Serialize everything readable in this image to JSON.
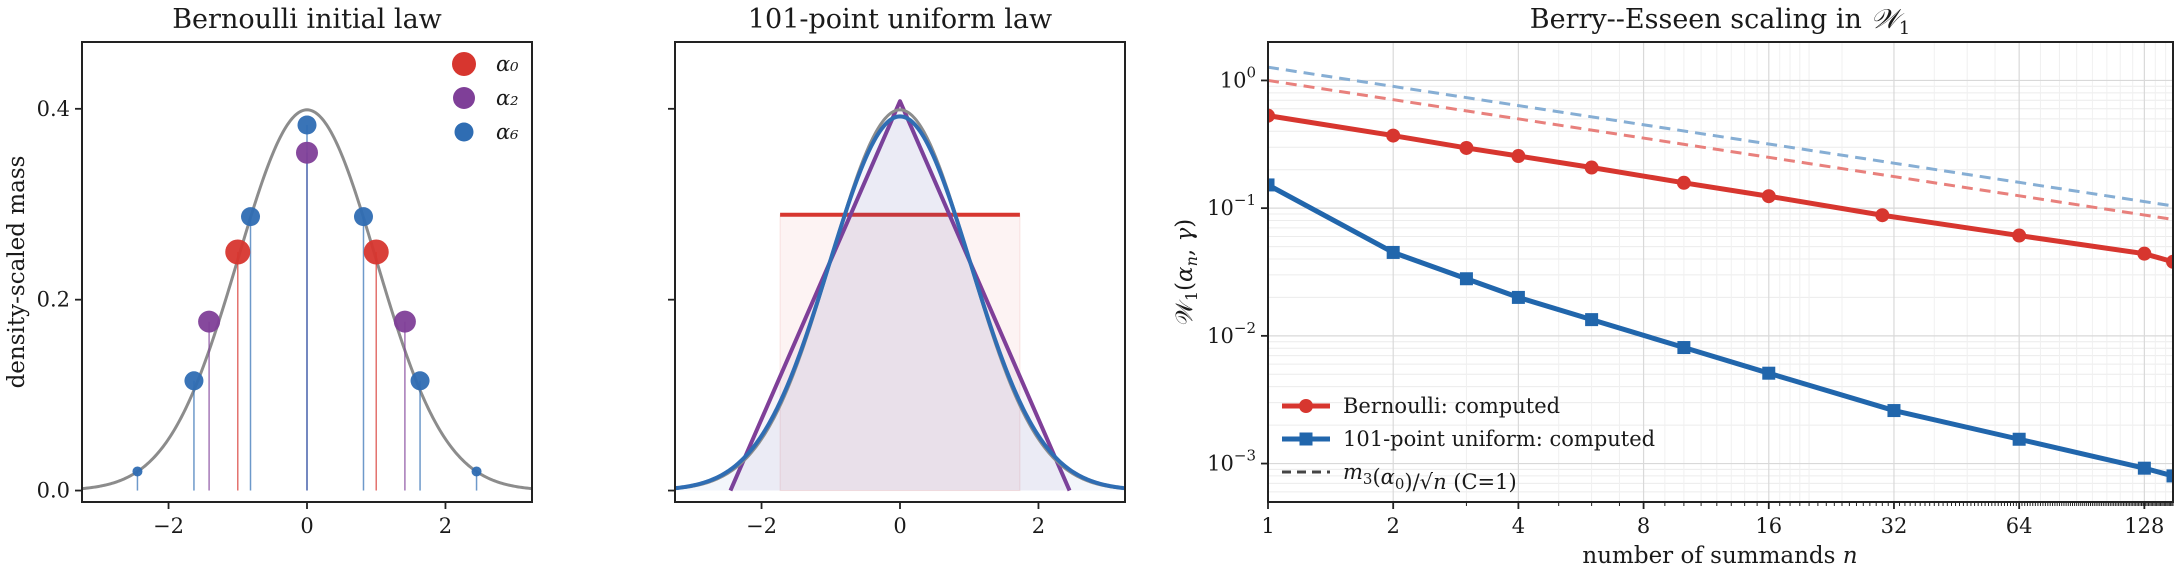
{
  "chart_data": [
    {
      "type": "scatter",
      "title": "Bernoulli initial law",
      "ylabel": "density-scaled mass",
      "xlabel": "",
      "xlim": [
        -3.25,
        3.25
      ],
      "ylim": [
        -0.012,
        0.47
      ],
      "xticks": [
        "−2",
        "0",
        "2"
      ],
      "yticks": [
        "0.0",
        "0.2",
        "0.4"
      ],
      "grid": false,
      "legend": "top-right",
      "reference_curve": "standard normal density",
      "series": [
        {
          "name": "α₀",
          "color": "#d7362f",
          "x": [
            -1,
            1
          ],
          "y": [
            0.25,
            0.25
          ]
        },
        {
          "name": "α₂",
          "color": "#7f3f98",
          "x": [
            -1.414,
            0,
            1.414
          ],
          "y": [
            0.177,
            0.354,
            0.177
          ]
        },
        {
          "name": "α₆",
          "color": "#2f6db3",
          "x": [
            -2.449,
            -1.633,
            -0.816,
            0,
            0.816,
            1.633,
            2.449
          ],
          "y": [
            0.02,
            0.115,
            0.287,
            0.383,
            0.287,
            0.115,
            0.02
          ]
        }
      ]
    },
    {
      "type": "line",
      "title": "101-point uniform law",
      "xlim": [
        -3.25,
        3.25
      ],
      "ylim": [
        -0.012,
        0.47
      ],
      "xticks": [
        "−2",
        "0",
        "2"
      ],
      "grid": false,
      "series": [
        {
          "color": "#d7362f",
          "shape": "uniform",
          "half_width": 1.732,
          "height": 0.289
        },
        {
          "color": "#7f3f98",
          "shape": "triangular",
          "half_width": 2.449,
          "height": 0.408
        },
        {
          "color": "#2f6db3",
          "shape": "smooth",
          "height": 0.392
        },
        {
          "color": "#8c8c8c",
          "shape": "normal",
          "height": 0.399
        }
      ]
    },
    {
      "type": "line",
      "title": "Berry--Esseen scaling in 𝒲₁",
      "xlabel_text": "number of summands ",
      "xlabel_var": "n",
      "ylabel": "𝒲₁(αₙ, γ)",
      "xscale": "log2",
      "yscale": "log10",
      "xlim": [
        1,
        150
      ],
      "ylim": [
        0.0005,
        2.0
      ],
      "xticks": [
        1,
        2,
        4,
        8,
        16,
        32,
        64,
        128
      ],
      "xtick_labels": [
        "1",
        "2",
        "4",
        "8",
        "16",
        "32",
        "64",
        "128"
      ],
      "yticks": [
        0.001,
        0.01,
        0.1,
        1
      ],
      "ytick_labels": [
        [
          "10",
          "−3"
        ],
        [
          "10",
          "−2"
        ],
        [
          "10",
          "−1"
        ],
        [
          "10",
          "0"
        ]
      ],
      "grid": true,
      "legend": "bottom-left",
      "series": [
        {
          "name": "Bernoulli: computed",
          "color": "#d7362f",
          "marker": "circle",
          "x": [
            1,
            2,
            3,
            4,
            6,
            10,
            16,
            30,
            64,
            128,
            150
          ],
          "y": [
            0.53,
            0.37,
            0.296,
            0.256,
            0.208,
            0.158,
            0.124,
            0.088,
            0.061,
            0.044,
            0.038
          ]
        },
        {
          "name": "101-point uniform: computed",
          "color": "#2166ac",
          "marker": "square",
          "x": [
            1,
            2,
            3,
            4,
            6,
            10,
            16,
            32,
            64,
            128,
            150
          ],
          "y": [
            0.152,
            0.045,
            0.028,
            0.02,
            0.0134,
            0.0081,
            0.0051,
            0.0026,
            0.00155,
            0.00092,
            0.0008
          ]
        },
        {
          "name": "C=1",
          "color": "#e8807c",
          "dashed": true,
          "x": [
            1,
            150
          ],
          "y": [
            1.0,
            0.0816
          ]
        },
        {
          "name": "",
          "color": "#86aed4",
          "dashed": true,
          "x": [
            1,
            150
          ],
          "y": [
            1.27,
            0.104
          ]
        }
      ],
      "legend_entries": [
        "Bernoulli: computed",
        "101-point uniform: computed",
        "(C=1)"
      ]
    }
  ]
}
